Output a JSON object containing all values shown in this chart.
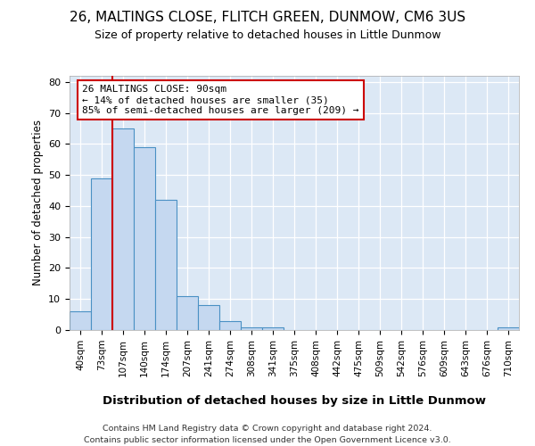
{
  "title": "26, MALTINGS CLOSE, FLITCH GREEN, DUNMOW, CM6 3US",
  "subtitle": "Size of property relative to detached houses in Little Dunmow",
  "xlabel": "Distribution of detached houses by size in Little Dunmow",
  "ylabel": "Number of detached properties",
  "bar_labels": [
    "40sqm",
    "73sqm",
    "107sqm",
    "140sqm",
    "174sqm",
    "207sqm",
    "241sqm",
    "274sqm",
    "308sqm",
    "341sqm",
    "375sqm",
    "408sqm",
    "442sqm",
    "475sqm",
    "509sqm",
    "542sqm",
    "576sqm",
    "609sqm",
    "643sqm",
    "676sqm",
    "710sqm"
  ],
  "bar_heights": [
    6,
    49,
    65,
    59,
    42,
    11,
    8,
    3,
    1,
    1,
    0,
    0,
    0,
    0,
    0,
    0,
    0,
    0,
    0,
    0,
    1
  ],
  "bar_color": "#c5d8f0",
  "bar_edge_color": "#4a90c4",
  "vline_x": 1.5,
  "vline_color": "#cc0000",
  "annotation_text": "26 MALTINGS CLOSE: 90sqm\n← 14% of detached houses are smaller (35)\n85% of semi-detached houses are larger (209) →",
  "annotation_box_color": "white",
  "annotation_box_edge": "#cc0000",
  "ylim": [
    0,
    82
  ],
  "yticks": [
    0,
    10,
    20,
    30,
    40,
    50,
    60,
    70,
    80
  ],
  "bg_color": "#dce8f5",
  "plot_bg_color": "#dce8f5",
  "footer_line1": "Contains HM Land Registry data © Crown copyright and database right 2024.",
  "footer_line2": "Contains public sector information licensed under the Open Government Licence v3.0.",
  "title_fontsize": 11,
  "subtitle_fontsize": 9
}
